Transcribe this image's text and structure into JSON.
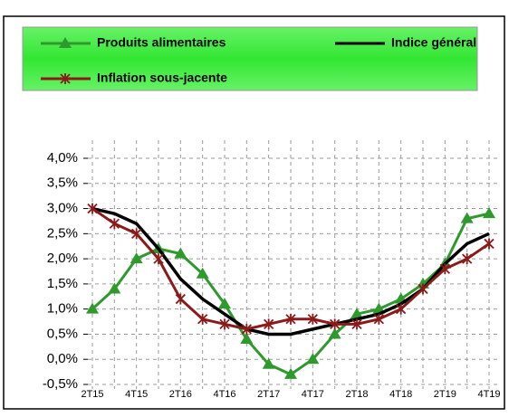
{
  "chart_data": {
    "type": "line",
    "categories": [
      "2T15",
      null,
      "4T15",
      null,
      "2T16",
      null,
      "4T16",
      null,
      "2T17",
      null,
      "4T17",
      null,
      "2T18",
      null,
      "4T18",
      null,
      "2T19",
      null,
      "4T19"
    ],
    "series": [
      {
        "name": "Produits alimentaires",
        "color": "#2e9a2e",
        "marker": "triangle",
        "values": [
          1.0,
          1.4,
          2.0,
          2.2,
          2.1,
          1.7,
          1.1,
          0.4,
          -0.1,
          -0.3,
          0.0,
          0.5,
          0.9,
          1.0,
          1.2,
          1.5,
          1.9,
          2.8,
          2.9
        ]
      },
      {
        "name": "Indice général",
        "color": "#000000",
        "marker": "none",
        "values": [
          3.0,
          2.9,
          2.7,
          2.2,
          1.6,
          1.2,
          0.9,
          0.6,
          0.5,
          0.5,
          0.6,
          0.7,
          0.8,
          0.9,
          1.1,
          1.4,
          1.9,
          2.3,
          2.5
        ]
      },
      {
        "name": "Inflation sous-jacente",
        "color": "#8b1a1a",
        "marker": "star",
        "values": [
          3.0,
          2.7,
          2.5,
          2.0,
          1.2,
          0.8,
          0.7,
          0.6,
          0.7,
          0.8,
          0.8,
          0.7,
          0.7,
          0.8,
          1.0,
          1.4,
          1.8,
          2.0,
          2.3
        ]
      }
    ],
    "ylim": [
      -0.5,
      4.0
    ],
    "yticks": [
      {
        "value": -0.5,
        "label": "-0,5%"
      },
      {
        "value": 0.0,
        "label": "0,0%"
      },
      {
        "value": 0.5,
        "label": "0,5%"
      },
      {
        "value": 1.0,
        "label": "1,0%"
      },
      {
        "value": 1.5,
        "label": "1,5%"
      },
      {
        "value": 2.0,
        "label": "2,0%"
      },
      {
        "value": 2.5,
        "label": "2,5%"
      },
      {
        "value": 3.0,
        "label": "3,0%"
      },
      {
        "value": 3.5,
        "label": "3,5%"
      },
      {
        "value": 4.0,
        "label": "4,0%"
      }
    ],
    "grid": true
  }
}
